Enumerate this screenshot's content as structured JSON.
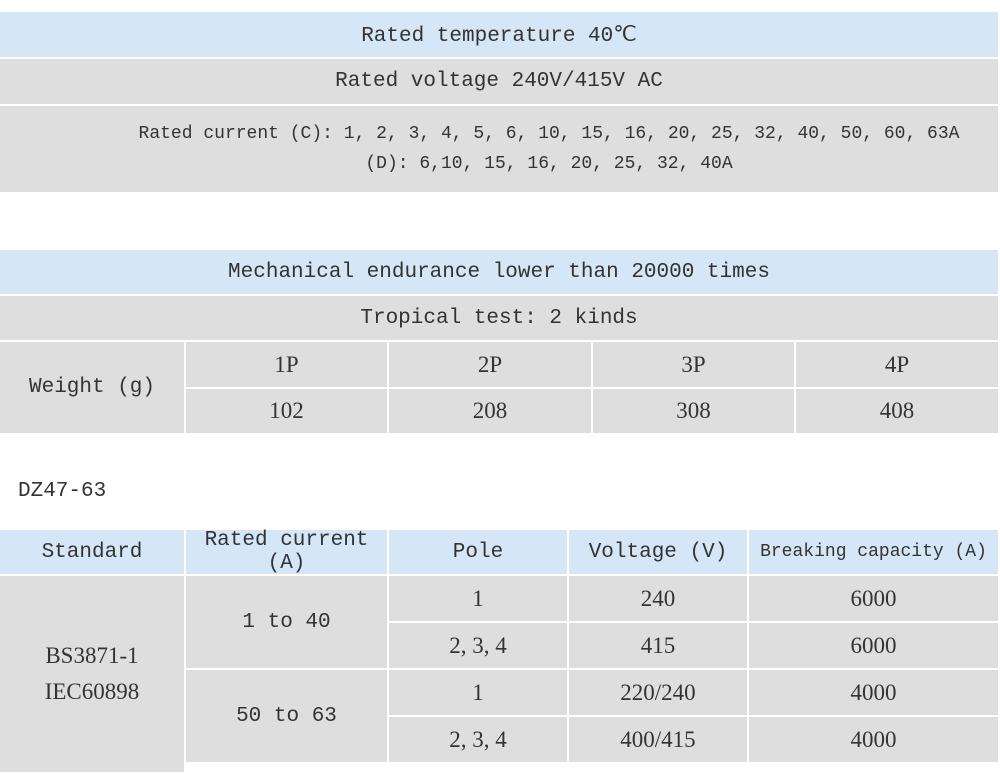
{
  "table1": {
    "rows": [
      "Rated temperature 40℃",
      "Rated voltage 240V/415V AC",
      [
        "Rated current (C): 1, 2, 3, 4, 5, 6, 10, 15, 16, 20, 25, 32, 40, 50, 60, 63A",
        "(D): 6,10, 15, 16, 20, 25, 32, 40A"
      ]
    ]
  },
  "table2": {
    "rows": [
      "Mechanical endurance lower than 20000 times",
      "Tropical test: 2 kinds"
    ],
    "weight": {
      "label": "Weight (g)",
      "poles": [
        "1P",
        "2P",
        "3P",
        "4P"
      ],
      "values": [
        102,
        208,
        308,
        408
      ]
    }
  },
  "caption": "DZ47-63",
  "table3": {
    "header": [
      "Standard",
      "Rated current (A)",
      "Pole",
      "Voltage (V)",
      "Breaking capacity (A)"
    ],
    "standard": [
      "BS3871-1",
      "IEC60898"
    ],
    "groups": [
      {
        "current": "1 to 40",
        "rows": [
          [
            "1",
            240,
            6000
          ],
          [
            "2, 3, 4",
            415,
            6000
          ]
        ]
      },
      {
        "current": "50 to 63",
        "rows": [
          [
            "1",
            "220/240",
            4000
          ],
          [
            "2, 3, 4",
            "400/415",
            4000
          ]
        ]
      }
    ]
  }
}
